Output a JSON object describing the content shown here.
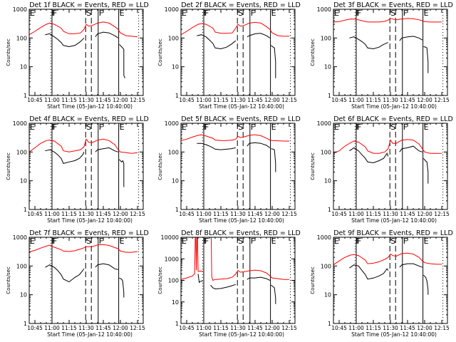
{
  "chart_data": {
    "type": "line",
    "layout": "3x3 grid",
    "x_start_label": "Start Time (05-Jan-12 10:40:00)",
    "x_ticks": [
      "10:45",
      "11:00",
      "11:15",
      "11:30",
      "11:45",
      "12:00",
      "12:15"
    ],
    "x_tick_minutes": [
      5,
      20,
      35,
      50,
      65,
      80,
      95
    ],
    "x_range_minutes": [
      0,
      100
    ],
    "y_scale": "log",
    "ylabel": "Counts/sec",
    "series_colors": {
      "events": "#000000",
      "lld": "#ff0000"
    },
    "marker_lines": [
      {
        "label": "E",
        "minutes": 0,
        "style": "solid"
      },
      {
        "label": "F",
        "minutes": 19,
        "style": "dotted"
      },
      {
        "label": "F",
        "minutes": 20,
        "style": "solid"
      },
      {
        "label": "S",
        "minutes": 49.5,
        "style": "dashed"
      },
      {
        "label": "",
        "minutes": 54.5,
        "style": "dashed"
      },
      {
        "label": "F",
        "minutes": 60.5,
        "style": "solid"
      },
      {
        "label": "E",
        "minutes": 78.5,
        "style": "solid"
      },
      {
        "label": "",
        "minutes": 96,
        "style": "dotted"
      }
    ],
    "panels": [
      {
        "title": "Det 1f BLACK = Events, RED = LLD",
        "ylim": [
          1,
          1000
        ],
        "y_ticks": [
          "1",
          "10",
          "100",
          "1000"
        ],
        "lld": {
          "x": [
            0,
            5,
            10,
            15,
            18,
            22,
            28,
            30,
            35,
            40,
            45,
            48,
            50,
            52,
            55,
            60,
            65,
            70,
            75,
            78,
            80,
            85,
            90,
            95
          ],
          "y": [
            130,
            170,
            230,
            300,
            330,
            300,
            220,
            170,
            140,
            140,
            150,
            200,
            300,
            260,
            270,
            330,
            360,
            330,
            250,
            200,
            150,
            120,
            115,
            110
          ]
        },
        "events": {
          "x": [
            14,
            18,
            22,
            25,
            28,
            30,
            35,
            40,
            44,
            47,
            48,
            null,
            58,
            60,
            65,
            70,
            75,
            78,
            null,
            79,
            81,
            82,
            83,
            83,
            84
          ],
          "y": [
            130,
            140,
            110,
            90,
            70,
            55,
            50,
            55,
            70,
            90,
            100,
            null,
            110,
            140,
            160,
            150,
            120,
            100,
            null,
            60,
            50,
            45,
            40,
            5,
            4
          ]
        }
      },
      {
        "title": "Det 2f BLACK = Events, RED = LLD",
        "ylim": [
          1,
          1000
        ],
        "y_ticks": [
          "1",
          "10",
          "100",
          "1000"
        ],
        "lld": {
          "x": [
            0,
            5,
            10,
            15,
            18,
            22,
            28,
            30,
            35,
            40,
            45,
            48,
            50,
            52,
            55,
            60,
            65,
            70,
            75,
            78,
            80,
            85,
            90,
            95
          ],
          "y": [
            130,
            170,
            230,
            300,
            320,
            300,
            220,
            160,
            145,
            145,
            150,
            220,
            300,
            260,
            270,
            330,
            350,
            330,
            250,
            200,
            150,
            120,
            115,
            115
          ]
        },
        "events": {
          "x": [
            14,
            18,
            22,
            25,
            28,
            30,
            35,
            40,
            44,
            48,
            null,
            58,
            60,
            65,
            70,
            75,
            78,
            null,
            79,
            81,
            82,
            83,
            83
          ],
          "y": [
            120,
            130,
            110,
            85,
            65,
            45,
            42,
            48,
            60,
            80,
            null,
            110,
            120,
            140,
            145,
            120,
            100,
            null,
            55,
            48,
            45,
            15,
            4
          ]
        }
      },
      {
        "title": "Det 3f BLACK = Events, RED = LLD",
        "ylim": [
          1,
          1000
        ],
        "y_ticks": [
          "1",
          "10",
          "100",
          "1000"
        ],
        "lld": {
          "x": [
            0,
            5,
            10,
            15,
            20,
            25,
            30,
            35,
            40,
            45,
            48,
            50,
            55,
            60,
            65,
            70,
            75,
            78,
            80,
            85,
            90,
            95
          ],
          "y": [
            360,
            370,
            420,
            460,
            450,
            400,
            360,
            360,
            360,
            380,
            420,
            480,
            430,
            460,
            480,
            470,
            430,
            400,
            370,
            360,
            360,
            360
          ]
        },
        "events": {
          "x": [
            14,
            18,
            22,
            25,
            28,
            30,
            35,
            40,
            44,
            48,
            null,
            58,
            60,
            65,
            70,
            75,
            78,
            null,
            79,
            81,
            82,
            83,
            83
          ],
          "y": [
            100,
            110,
            90,
            75,
            60,
            45,
            42,
            48,
            60,
            70,
            null,
            80,
            100,
            110,
            115,
            100,
            85,
            null,
            50,
            48,
            45,
            15,
            6
          ]
        }
      },
      {
        "title": "Det 4f BLACK = Events, RED = LLD",
        "ylim": [
          1,
          1000
        ],
        "y_ticks": [
          "1",
          "10",
          "100",
          "1000"
        ],
        "lld": {
          "x": [
            0,
            5,
            10,
            15,
            18,
            22,
            28,
            30,
            35,
            40,
            45,
            48,
            50,
            52,
            55,
            60,
            65,
            70,
            75,
            78,
            80,
            85,
            90,
            95
          ],
          "y": [
            100,
            140,
            200,
            250,
            260,
            240,
            160,
            110,
            100,
            110,
            120,
            150,
            280,
            220,
            210,
            260,
            280,
            250,
            180,
            120,
            100,
            95,
            90,
            95
          ]
        },
        "events": {
          "x": [
            14,
            18,
            22,
            25,
            28,
            30,
            35,
            40,
            44,
            47,
            48,
            null,
            58,
            60,
            65,
            70,
            75,
            78,
            null,
            79,
            81,
            82,
            83,
            83
          ],
          "y": [
            110,
            120,
            100,
            80,
            60,
            40,
            45,
            50,
            60,
            80,
            100,
            null,
            100,
            120,
            130,
            140,
            110,
            100,
            null,
            55,
            45,
            50,
            40,
            6
          ]
        }
      },
      {
        "title": "Det 5f BLACK = Events, RED = LLD",
        "ylim": [
          1,
          1000
        ],
        "y_ticks": [
          "1",
          "10",
          "100",
          "1000"
        ],
        "lld": {
          "x": [
            0,
            5,
            10,
            15,
            18,
            22,
            28,
            30,
            35,
            40,
            45,
            48,
            50,
            52,
            55,
            60,
            65,
            70,
            75,
            78,
            80,
            85,
            90,
            95
          ],
          "y": [
            250,
            280,
            330,
            380,
            400,
            360,
            300,
            260,
            250,
            250,
            260,
            280,
            350,
            320,
            330,
            380,
            400,
            370,
            300,
            260,
            250,
            245,
            240,
            240
          ]
        },
        "events": {
          "x": [
            14,
            18,
            22,
            25,
            28,
            30,
            35,
            40,
            44,
            48,
            null,
            58,
            60,
            65,
            70,
            75,
            78,
            null,
            79,
            81,
            82,
            83,
            83
          ],
          "y": [
            200,
            200,
            180,
            160,
            140,
            125,
            120,
            125,
            130,
            140,
            null,
            160,
            200,
            210,
            200,
            170,
            140,
            null,
            130,
            125,
            120,
            40,
            20
          ]
        }
      },
      {
        "title": "Det 6f BLACK = Events, RED = LLD",
        "ylim": [
          1,
          1000
        ],
        "y_ticks": [
          "1",
          "10",
          "100",
          "1000"
        ],
        "lld": {
          "x": [
            0,
            5,
            10,
            15,
            18,
            22,
            28,
            30,
            35,
            40,
            45,
            48,
            50,
            52,
            55,
            60,
            65,
            70,
            75,
            78,
            80,
            85,
            90,
            95
          ],
          "y": [
            90,
            110,
            160,
            210,
            240,
            220,
            150,
            110,
            90,
            90,
            100,
            130,
            260,
            200,
            200,
            260,
            270,
            260,
            190,
            130,
            100,
            90,
            90,
            90
          ]
        },
        "events": {
          "x": [
            14,
            18,
            22,
            25,
            28,
            30,
            35,
            40,
            44,
            47,
            48,
            null,
            58,
            60,
            65,
            70,
            75,
            78,
            null,
            79,
            81,
            82,
            83,
            83
          ],
          "y": [
            110,
            140,
            110,
            80,
            60,
            45,
            42,
            50,
            60,
            90,
            70,
            null,
            100,
            130,
            140,
            160,
            110,
            100,
            null,
            60,
            48,
            45,
            20,
            8
          ]
        }
      },
      {
        "title": "Det 7f BLACK = Events, RED = LLD",
        "ylim": [
          1,
          1000
        ],
        "y_ticks": [
          "1",
          "10",
          "100",
          "1000"
        ],
        "lld": {
          "x": [
            0,
            5,
            10,
            15,
            18,
            22,
            28,
            30,
            35,
            40,
            45,
            48,
            50,
            55,
            60,
            65,
            70,
            75,
            78,
            80,
            85,
            90,
            95
          ],
          "y": [
            310,
            350,
            420,
            490,
            530,
            450,
            370,
            330,
            320,
            340,
            390,
            430,
            470,
            470,
            540,
            560,
            520,
            440,
            400,
            330,
            300,
            300,
            320
          ]
        },
        "events": {
          "x": [
            14,
            18,
            22,
            25,
            28,
            30,
            35,
            40,
            44,
            47,
            48,
            null,
            58,
            60,
            65,
            70,
            75,
            78,
            null,
            79,
            81,
            82,
            83,
            83
          ],
          "y": [
            90,
            110,
            90,
            70,
            50,
            35,
            28,
            40,
            50,
            70,
            80,
            null,
            90,
            110,
            120,
            110,
            80,
            75,
            null,
            38,
            35,
            30,
            12,
            8
          ]
        }
      },
      {
        "title": "Det 8f BLACK = Events, RED = LLD",
        "ylim": [
          1,
          10000
        ],
        "y_ticks": [
          "1",
          "10",
          "100",
          "1000",
          "10000"
        ],
        "lld": {
          "x": [
            0,
            5,
            10,
            12,
            12.5,
            13,
            13.5,
            14,
            14.5,
            15,
            17,
            19,
            null,
            26,
            26.5,
            27,
            28,
            30,
            35,
            40,
            45,
            48,
            50,
            52,
            55,
            60,
            65,
            70,
            75,
            78,
            80,
            85,
            90,
            95
          ],
          "y": [
            110,
            130,
            160,
            200,
            10000,
            10000,
            300,
            10000,
            10000,
            260,
            270,
            260,
            null,
            10000,
            10000,
            150,
            100,
            110,
            115,
            120,
            140,
            200,
            290,
            240,
            250,
            280,
            300,
            280,
            220,
            160,
            130,
            120,
            110,
            110
          ]
        },
        "events": {
          "x": [
            15,
            16,
            17,
            19,
            null,
            26,
            28,
            30,
            35,
            40,
            44,
            48,
            null,
            58,
            60,
            65,
            70,
            75,
            78,
            null,
            79,
            81,
            82,
            83,
            83
          ],
          "y": [
            200,
            80,
            90,
            95,
            null,
            60,
            45,
            40,
            42,
            48,
            55,
            65,
            null,
            110,
            130,
            130,
            140,
            120,
            100,
            null,
            60,
            50,
            45,
            15,
            8
          ]
        }
      },
      {
        "title": "Det 9f BLACK = Events, RED = LLD",
        "ylim": [
          1,
          1000
        ],
        "y_ticks": [
          "1",
          "10",
          "100",
          "1000"
        ],
        "lld": {
          "x": [
            0,
            5,
            10,
            15,
            18,
            22,
            28,
            30,
            35,
            40,
            45,
            48,
            50,
            52,
            55,
            60,
            65,
            70,
            75,
            78,
            80,
            85,
            90,
            95
          ],
          "y": [
            110,
            150,
            200,
            240,
            250,
            230,
            160,
            120,
            125,
            140,
            170,
            200,
            260,
            230,
            220,
            270,
            280,
            260,
            200,
            150,
            130,
            120,
            115,
            115
          ]
        },
        "events": {
          "x": [
            14,
            18,
            22,
            25,
            28,
            30,
            35,
            40,
            44,
            47,
            48,
            null,
            58,
            60,
            65,
            70,
            75,
            78,
            null,
            79,
            81,
            82,
            83,
            83
          ],
          "y": [
            85,
            110,
            100,
            70,
            50,
            35,
            38,
            45,
            55,
            80,
            70,
            null,
            90,
            110,
            120,
            120,
            100,
            90,
            null,
            48,
            40,
            30,
            15,
            10
          ]
        }
      }
    ]
  }
}
